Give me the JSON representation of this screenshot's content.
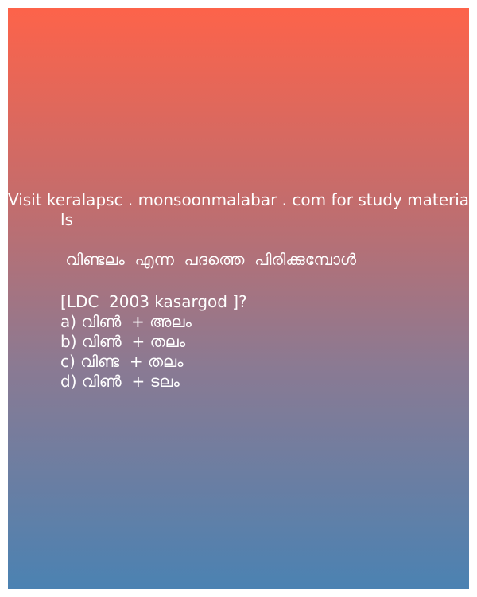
{
  "promo": {
    "line1": "Visit keralapsc . monsoonmalabar . com for study materia",
    "line2": "ls"
  },
  "question": {
    "text": " വിണ്ടലം  എന്ന  പദത്തെ  പിരിക്കുമ്പോൾ",
    "meta": "[LDC  2003 kasargod ]?",
    "options": [
      "a) വിൺ  + അലം",
      "b) വിൺ  + തലം",
      "c) വിണ്ട  + തലം",
      "d) വിൺ  + ടലം"
    ]
  },
  "colors": {
    "gradient_top": "#fd634a",
    "gradient_bottom": "#4b82b2",
    "text": "#ffffff"
  }
}
